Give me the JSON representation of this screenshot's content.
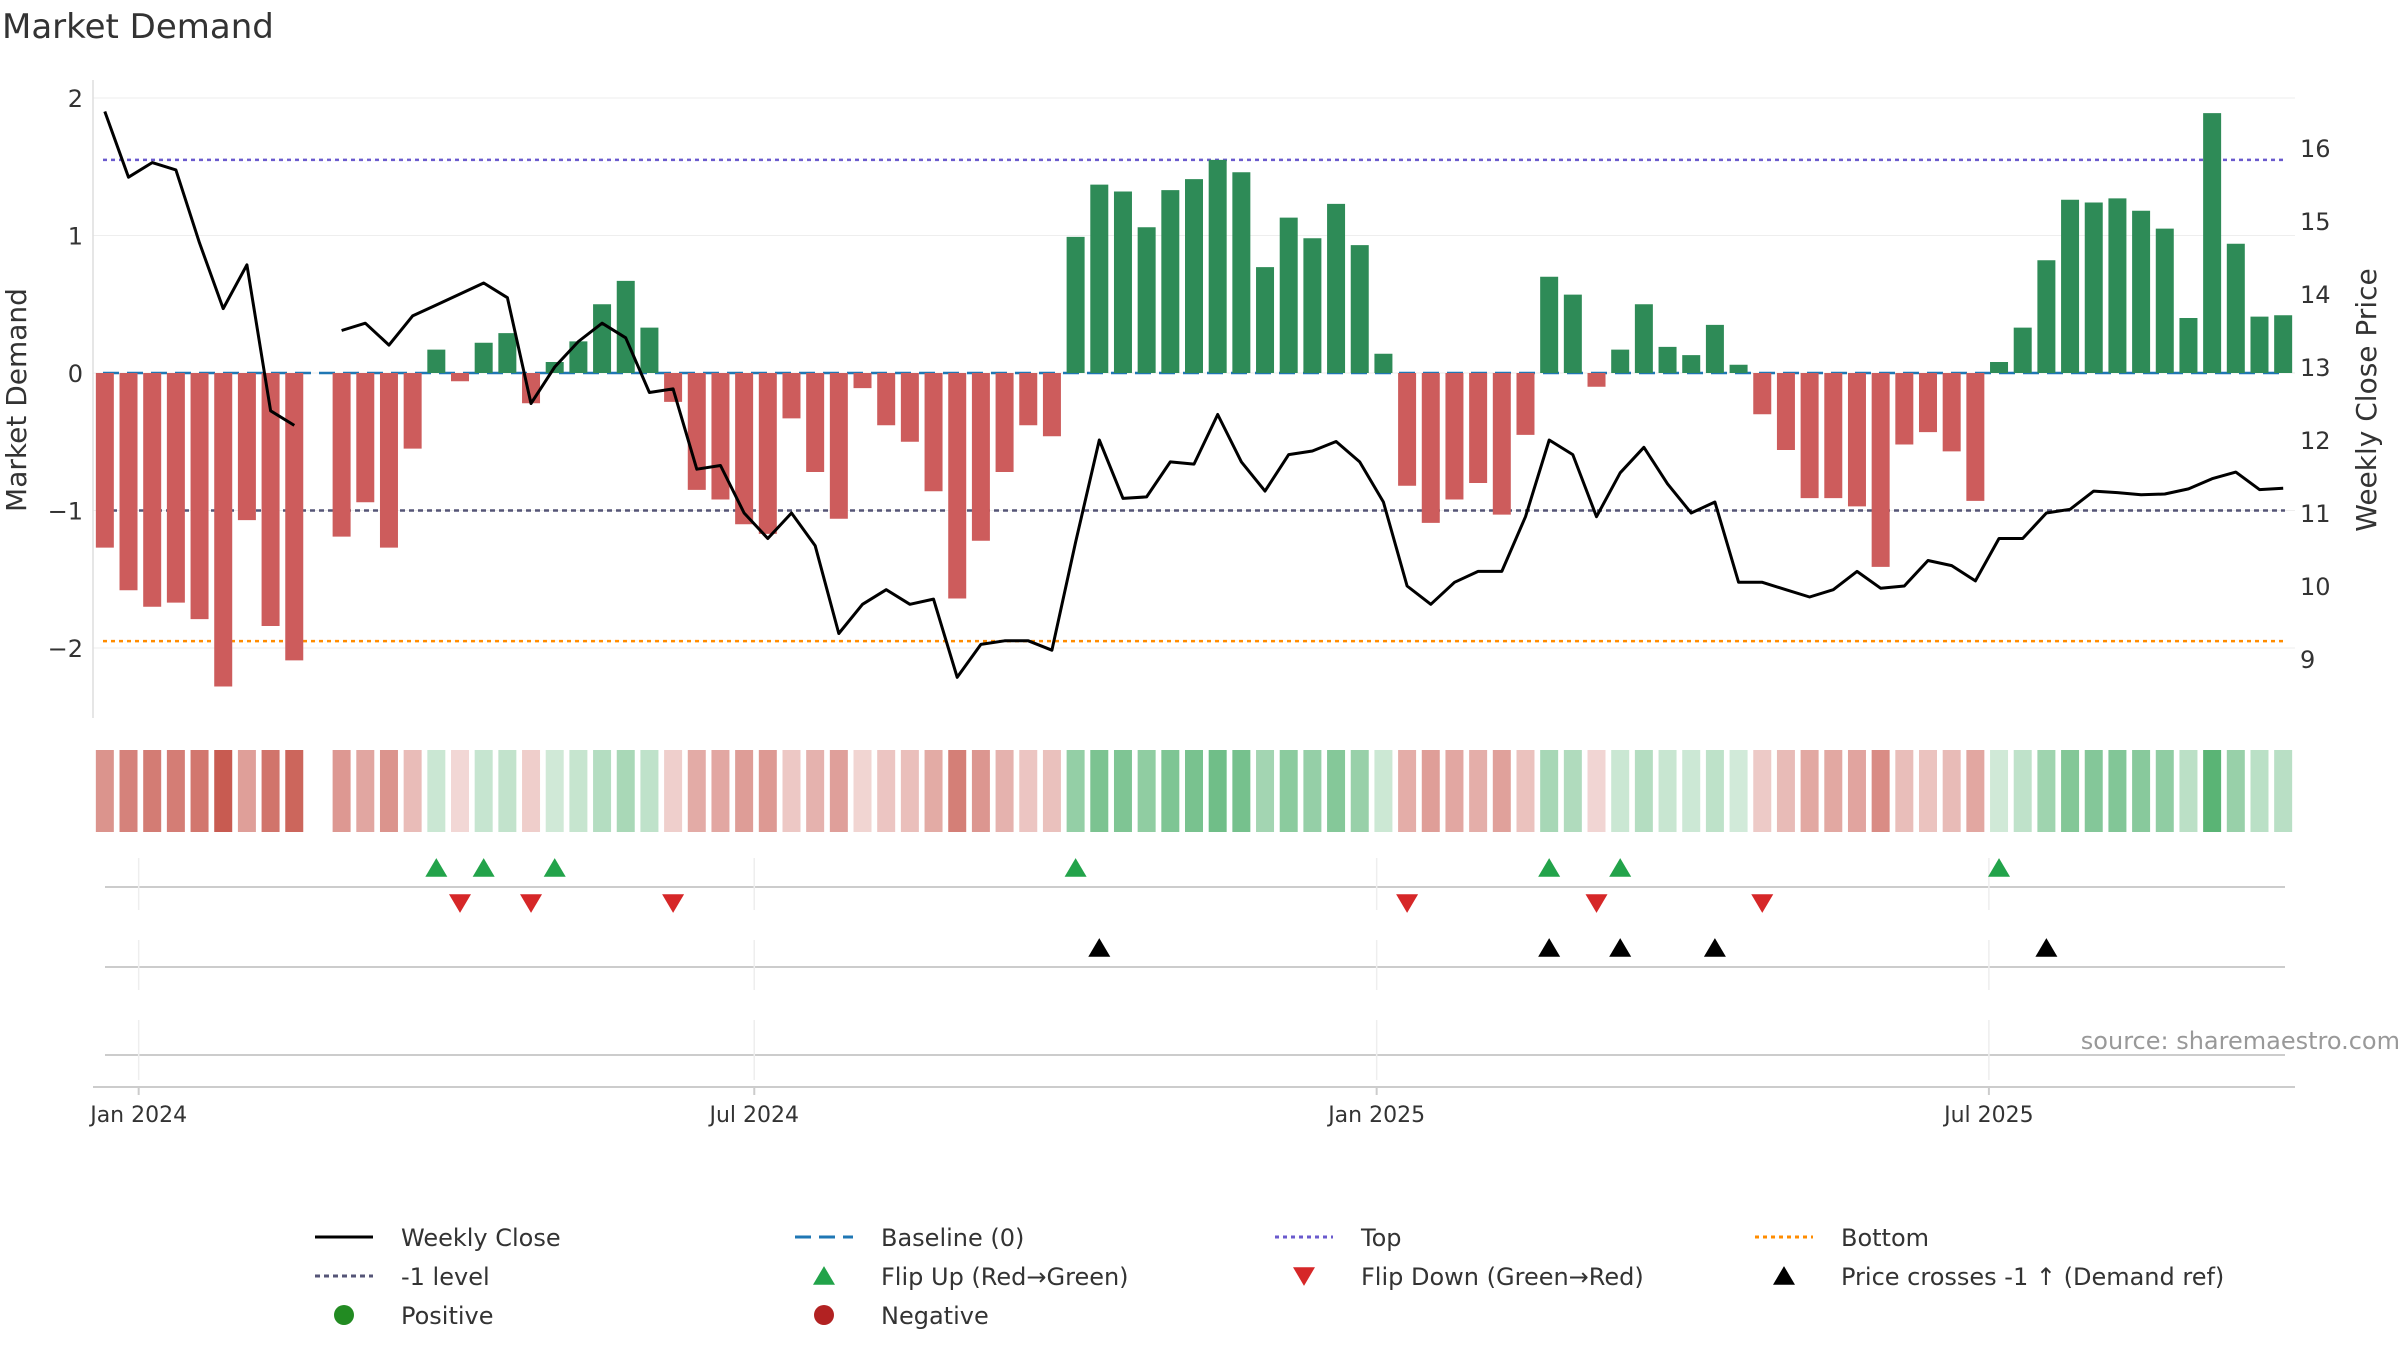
{
  "chart_data": {
    "type": "bar",
    "title": "Market Demand",
    "ylabel_left": "Market Demand",
    "ylabel_right": "Weekly Close Price",
    "ylim_left": [
      -2.5,
      2.0
    ],
    "ylim_right": [
      8.2,
      16.9
    ],
    "yticks_left": [
      2,
      1,
      0,
      -1,
      -2
    ],
    "ytick_labels_left": [
      "2",
      "1",
      "0",
      "−1",
      "−2"
    ],
    "yticks_right": [
      16,
      15,
      14,
      13,
      12,
      11,
      10,
      9
    ],
    "ytick_labels_right": [
      "16",
      "15",
      "14",
      "13",
      "12",
      "11",
      "10",
      "9"
    ],
    "x_start": "2023-12-22",
    "week_step_days": 7,
    "x_ticks": [
      {
        "label": "Jan 2024",
        "date": "2024-01-01"
      },
      {
        "label": "Jul 2024",
        "date": "2024-07-01"
      },
      {
        "label": "Jan 2025",
        "date": "2025-01-01"
      },
      {
        "label": "Jul 2025",
        "date": "2025-07-01"
      }
    ],
    "demand": [
      -1.27,
      -1.58,
      -1.7,
      -1.67,
      -1.79,
      -2.28,
      -1.07,
      -1.84,
      -2.09,
      null,
      -1.19,
      -0.94,
      -1.27,
      -0.55,
      0.17,
      -0.06,
      0.22,
      0.29,
      -0.22,
      0.08,
      0.23,
      0.5,
      0.67,
      0.33,
      -0.21,
      -0.85,
      -0.92,
      -1.1,
      -1.17,
      -0.33,
      -0.72,
      -1.06,
      -0.11,
      -0.38,
      -0.5,
      -0.86,
      -1.64,
      -1.22,
      -0.72,
      -0.38,
      -0.46,
      0.99,
      1.37,
      1.32,
      1.06,
      1.33,
      1.41,
      1.55,
      1.46,
      0.77,
      1.13,
      0.98,
      1.23,
      0.93,
      0.14,
      -0.82,
      -1.09,
      -0.92,
      -0.8,
      -1.03,
      -0.45,
      0.7,
      0.57,
      -0.1,
      0.17,
      0.5,
      0.19,
      0.13,
      0.35,
      0.06,
      -0.3,
      -0.56,
      -0.91,
      -0.91,
      -0.97,
      -1.41,
      -0.52,
      -0.43,
      -0.57,
      -0.93,
      0.08,
      0.33,
      0.82,
      1.26,
      1.24,
      1.27,
      1.18,
      1.05,
      0.4,
      1.89,
      0.94,
      0.41,
      0.42
    ],
    "price": [
      16.5,
      15.6,
      15.8,
      15.7,
      14.7,
      13.8,
      14.4,
      12.4,
      12.2,
      null,
      13.5,
      13.6,
      13.3,
      13.7,
      13.85,
      14.0,
      14.15,
      13.95,
      12.5,
      13.0,
      13.35,
      13.6,
      13.4,
      12.65,
      12.7,
      11.6,
      11.65,
      11.0,
      10.65,
      11.0,
      10.55,
      9.35,
      9.75,
      9.95,
      9.75,
      9.82,
      8.75,
      9.2,
      9.25,
      9.25,
      9.12,
      10.6,
      12.0,
      11.2,
      11.22,
      11.7,
      11.67,
      12.35,
      11.7,
      11.3,
      11.8,
      11.85,
      11.98,
      11.7,
      11.15,
      10.0,
      9.75,
      10.05,
      10.2,
      10.2,
      10.95,
      12.0,
      11.8,
      10.95,
      11.55,
      11.9,
      11.4,
      11.0,
      11.15,
      10.05,
      10.05,
      9.95,
      9.85,
      9.95,
      10.2,
      9.97,
      10.0,
      10.35,
      10.28,
      10.07,
      10.65,
      10.65,
      11.0,
      11.05,
      11.3,
      11.28,
      11.25,
      11.26,
      11.33,
      11.47,
      11.56,
      11.32,
      11.34
    ],
    "baseline_level": 0,
    "top_level": 1.55,
    "bottom_level": -1.95,
    "minus1_level": -1,
    "flip_up_weeks": [
      14,
      16,
      19,
      41,
      61,
      64,
      80
    ],
    "flip_down_weeks": [
      15,
      18,
      24,
      55,
      63,
      70
    ],
    "price_cross_weeks": [
      42,
      61,
      64,
      68,
      82
    ],
    "colors": {
      "positive": "#2e8b57",
      "negative": "#cd5c5c",
      "price_line": "#000000",
      "baseline": "#1f77b4",
      "top": "#6a5acd",
      "bottom": "#ff8c00",
      "minus1": "#555577",
      "flip_up": "#22a34a",
      "flip_down": "#d62728",
      "cross": "#000000",
      "positive_dot": "#228b22",
      "negative_dot": "#b22222"
    },
    "legend_position": "bottom",
    "legend": [
      {
        "key": "weekly_close",
        "label": "Weekly Close"
      },
      {
        "key": "baseline",
        "label": "Baseline (0)"
      },
      {
        "key": "top",
        "label": "Top"
      },
      {
        "key": "bottom",
        "label": "Bottom"
      },
      {
        "key": "minus1",
        "label": "-1 level"
      },
      {
        "key": "flip_up",
        "label": "Flip Up (Red→Green)"
      },
      {
        "key": "flip_down",
        "label": "Flip Down (Green→Red)"
      },
      {
        "key": "price_cross",
        "label": "Price crosses -1 ↑ (Demand ref)"
      },
      {
        "key": "positive",
        "label": "Positive"
      },
      {
        "key": "negative",
        "label": "Negative"
      }
    ],
    "source_note": "source: sharemaestro.com"
  }
}
